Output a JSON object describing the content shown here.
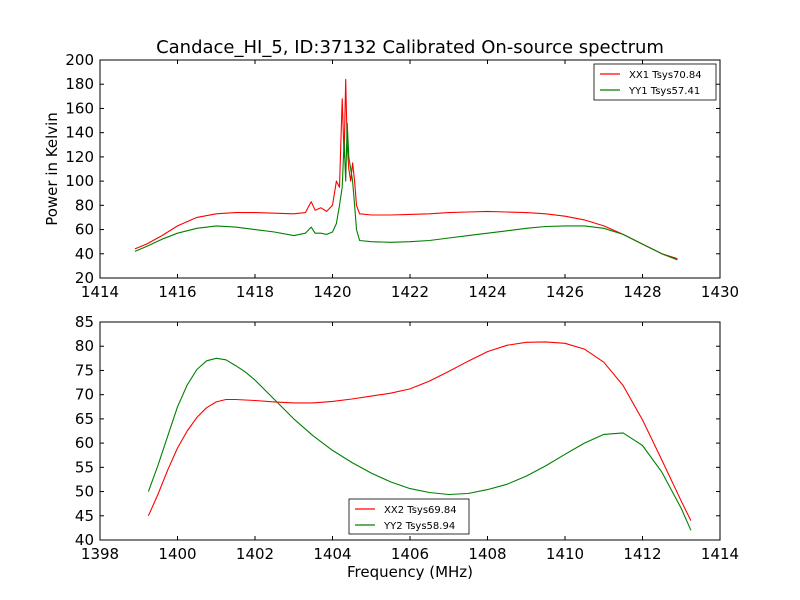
{
  "title": "Candace_HI_5, ID:37132 Calibrated On-source spectrum",
  "chart_data": [
    {
      "type": "line",
      "panel": "top",
      "title": "Candace_HI_5, ID:37132 Calibrated On-source spectrum",
      "xlabel": "",
      "ylabel": "Power in Kelvin",
      "xlim": [
        1414,
        1430
      ],
      "ylim": [
        20,
        200
      ],
      "xticks": [
        "1414",
        "1416",
        "1418",
        "1420",
        "1422",
        "1424",
        "1426",
        "1428",
        "1430"
      ],
      "yticks": [
        "20",
        "40",
        "60",
        "80",
        "100",
        "120",
        "140",
        "160",
        "180",
        "200"
      ],
      "grid": false,
      "legend_position": "top-right",
      "series": [
        {
          "name": "XX1 Tsys70.84",
          "color": "#ff0000",
          "x": [
            1414.9,
            1415.2,
            1415.6,
            1416.0,
            1416.5,
            1417.0,
            1417.5,
            1418.0,
            1418.5,
            1419.0,
            1419.3,
            1419.45,
            1419.55,
            1419.7,
            1419.85,
            1420.0,
            1420.1,
            1420.18,
            1420.25,
            1420.3,
            1420.34,
            1420.38,
            1420.42,
            1420.47,
            1420.52,
            1420.57,
            1420.62,
            1420.7,
            1421.0,
            1421.5,
            1422.0,
            1422.5,
            1423.0,
            1423.5,
            1424.0,
            1424.5,
            1425.0,
            1425.5,
            1426.0,
            1426.5,
            1427.0,
            1427.5,
            1428.0,
            1428.5,
            1428.9
          ],
          "y": [
            44,
            48,
            55,
            63,
            70,
            73,
            74,
            74,
            73.5,
            73,
            74,
            83,
            76,
            78,
            75,
            80,
            100,
            95,
            168,
            120,
            184,
            130,
            110,
            100,
            115,
            100,
            80,
            73,
            72,
            72,
            72.5,
            73,
            74,
            74.5,
            75,
            74.5,
            74,
            73,
            71,
            68,
            63,
            56,
            48,
            40,
            36
          ]
        },
        {
          "name": "YY1 Tsys57.41",
          "color": "#008000",
          "x": [
            1414.9,
            1415.2,
            1415.6,
            1416.0,
            1416.5,
            1417.0,
            1417.5,
            1418.0,
            1418.5,
            1419.0,
            1419.3,
            1419.45,
            1419.55,
            1419.7,
            1419.85,
            1420.0,
            1420.1,
            1420.18,
            1420.25,
            1420.3,
            1420.34,
            1420.38,
            1420.42,
            1420.47,
            1420.52,
            1420.57,
            1420.62,
            1420.7,
            1421.0,
            1421.5,
            1422.0,
            1422.5,
            1423.0,
            1423.5,
            1424.0,
            1424.5,
            1425.0,
            1425.5,
            1426.0,
            1426.5,
            1427.0,
            1427.5,
            1428.0,
            1428.5,
            1428.9
          ],
          "y": [
            42,
            46,
            52,
            57,
            61,
            63,
            62,
            60,
            58,
            55,
            57,
            62,
            57,
            57,
            56,
            58,
            65,
            80,
            95,
            133,
            100,
            148,
            120,
            110,
            100,
            80,
            60,
            51,
            50,
            49.5,
            50,
            51,
            53,
            55,
            57,
            59,
            61,
            62.5,
            63,
            63,
            61,
            56,
            48,
            40,
            35
          ]
        }
      ]
    },
    {
      "type": "line",
      "panel": "bottom",
      "title": "",
      "xlabel": "Frequency (MHz)",
      "ylabel": "",
      "xlim": [
        1398,
        1414
      ],
      "ylim": [
        40,
        85
      ],
      "xticks": [
        "1398",
        "1400",
        "1402",
        "1404",
        "1406",
        "1408",
        "1410",
        "1412",
        "1414"
      ],
      "yticks": [
        "40",
        "45",
        "50",
        "55",
        "60",
        "65",
        "70",
        "75",
        "80",
        "85"
      ],
      "grid": false,
      "legend_position": "bottom-center",
      "series": [
        {
          "name": "XX2 Tsys69.84",
          "color": "#ff0000",
          "x": [
            1399.25,
            1399.5,
            1399.75,
            1400.0,
            1400.25,
            1400.5,
            1400.75,
            1401.0,
            1401.25,
            1401.5,
            1401.75,
            1402.0,
            1402.5,
            1403.0,
            1403.5,
            1404.0,
            1404.5,
            1405.0,
            1405.5,
            1406.0,
            1406.5,
            1407.0,
            1407.5,
            1408.0,
            1408.5,
            1409.0,
            1409.5,
            1410.0,
            1410.5,
            1411.0,
            1411.5,
            1412.0,
            1412.5,
            1413.0,
            1413.25
          ],
          "y": [
            45,
            49.5,
            54.5,
            59,
            62.5,
            65.3,
            67.3,
            68.5,
            69,
            69,
            68.9,
            68.8,
            68.5,
            68.3,
            68.3,
            68.6,
            69.1,
            69.7,
            70.3,
            71.2,
            72.8,
            74.8,
            76.9,
            78.9,
            80.2,
            80.8,
            80.9,
            80.6,
            79.4,
            76.7,
            71.9,
            64.8,
            56.5,
            48,
            44
          ]
        },
        {
          "name": "YY2 Tsys58.94",
          "color": "#008000",
          "x": [
            1399.25,
            1399.5,
            1399.75,
            1400.0,
            1400.25,
            1400.5,
            1400.75,
            1401.0,
            1401.25,
            1401.5,
            1401.75,
            1402.0,
            1402.5,
            1403.0,
            1403.5,
            1404.0,
            1404.5,
            1405.0,
            1405.5,
            1406.0,
            1406.5,
            1407.0,
            1407.5,
            1408.0,
            1408.5,
            1409.0,
            1409.5,
            1410.0,
            1410.5,
            1411.0,
            1411.5,
            1412.0,
            1412.5,
            1413.0,
            1413.25
          ],
          "y": [
            50,
            55.5,
            61.5,
            67.5,
            72,
            75.2,
            77,
            77.5,
            77.2,
            76,
            74.7,
            73,
            69,
            65,
            61.5,
            58.5,
            56,
            53.8,
            52,
            50.6,
            49.8,
            49.4,
            49.6,
            50.4,
            51.5,
            53.2,
            55.3,
            57.7,
            60,
            61.8,
            62.1,
            59.5,
            54,
            46.5,
            42
          ]
        }
      ]
    }
  ]
}
